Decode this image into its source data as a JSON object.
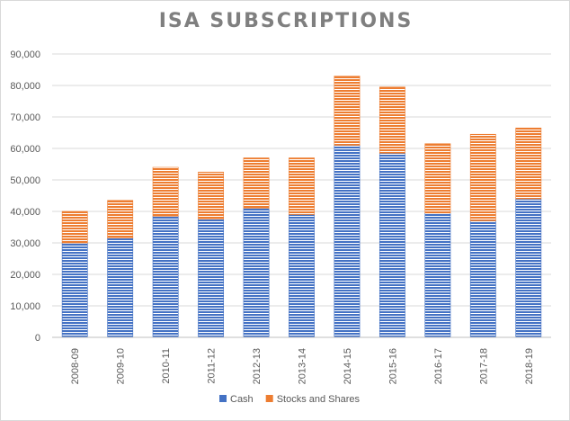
{
  "chart_data": {
    "type": "bar",
    "stacked": true,
    "title": "ISA SUBSCRIPTIONS",
    "categories": [
      "2008-09",
      "2009-10",
      "2010-11",
      "2011-12",
      "2012-13",
      "2013-14",
      "2014-15",
      "2015-16",
      "2016-17",
      "2017-18",
      "2018-19"
    ],
    "series": [
      {
        "name": "Cash",
        "color": "#4472c4",
        "values": [
          30000,
          31500,
          38500,
          37500,
          41000,
          39000,
          61000,
          58500,
          39500,
          37000,
          44000
        ]
      },
      {
        "name": "Stocks and Shares",
        "color": "#ed7d31",
        "values": [
          10000,
          12000,
          15500,
          15000,
          16000,
          18000,
          22000,
          21000,
          22000,
          27500,
          22500
        ]
      }
    ],
    "ylim": [
      0,
      90000
    ],
    "yticks": [
      "0",
      "10,000",
      "20,000",
      "30,000",
      "40,000",
      "50,000",
      "60,000",
      "70,000",
      "80,000",
      "90,000"
    ],
    "grid": true,
    "legend_position": "bottom"
  }
}
